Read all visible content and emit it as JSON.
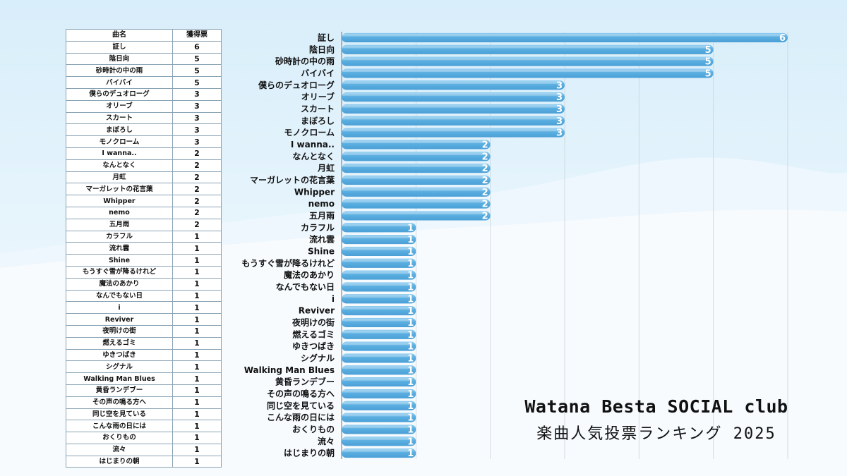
{
  "title": "Watana Besta SOCIAL club",
  "subtitle": "楽曲人気投票ランキング 2025",
  "table": {
    "headers": [
      "曲名",
      "獲得票"
    ]
  },
  "colors": {
    "bar": "#5aaee0",
    "bar_highlight": "#8ccaf0",
    "grid": "#c9d3da"
  },
  "chart_data": {
    "type": "bar",
    "orientation": "horizontal",
    "categories": [
      "証し",
      "陰日向",
      "砂時計の中の雨",
      "バイバイ",
      "僕らのデュオローグ",
      "オリーブ",
      "スカート",
      "まぼろし",
      "モノクローム",
      "I wanna..",
      "なんとなく",
      "月虹",
      "マーガレットの花言葉",
      "Whipper",
      "nemo",
      "五月雨",
      "カラフル",
      "流れ雲",
      "Shine",
      "もうすぐ雪が降るけれど",
      "魔法のあかり",
      "なんでもない日",
      "i",
      "Reviver",
      "夜明けの街",
      "燃えるゴミ",
      "ゆきつばき",
      "シグナル",
      "Walking Man Blues",
      "黄昏ランデブー",
      "その声の鳴る方へ",
      "同じ空を見ている",
      "こんな雨の日には",
      "おくりもの",
      "流々",
      "はじまりの朝"
    ],
    "values": [
      6,
      5,
      5,
      5,
      3,
      3,
      3,
      3,
      3,
      2,
      2,
      2,
      2,
      2,
      2,
      2,
      1,
      1,
      1,
      1,
      1,
      1,
      1,
      1,
      1,
      1,
      1,
      1,
      1,
      1,
      1,
      1,
      1,
      1,
      1,
      1
    ],
    "xlim": [
      0,
      6
    ],
    "grid": true,
    "data_labels": true
  }
}
